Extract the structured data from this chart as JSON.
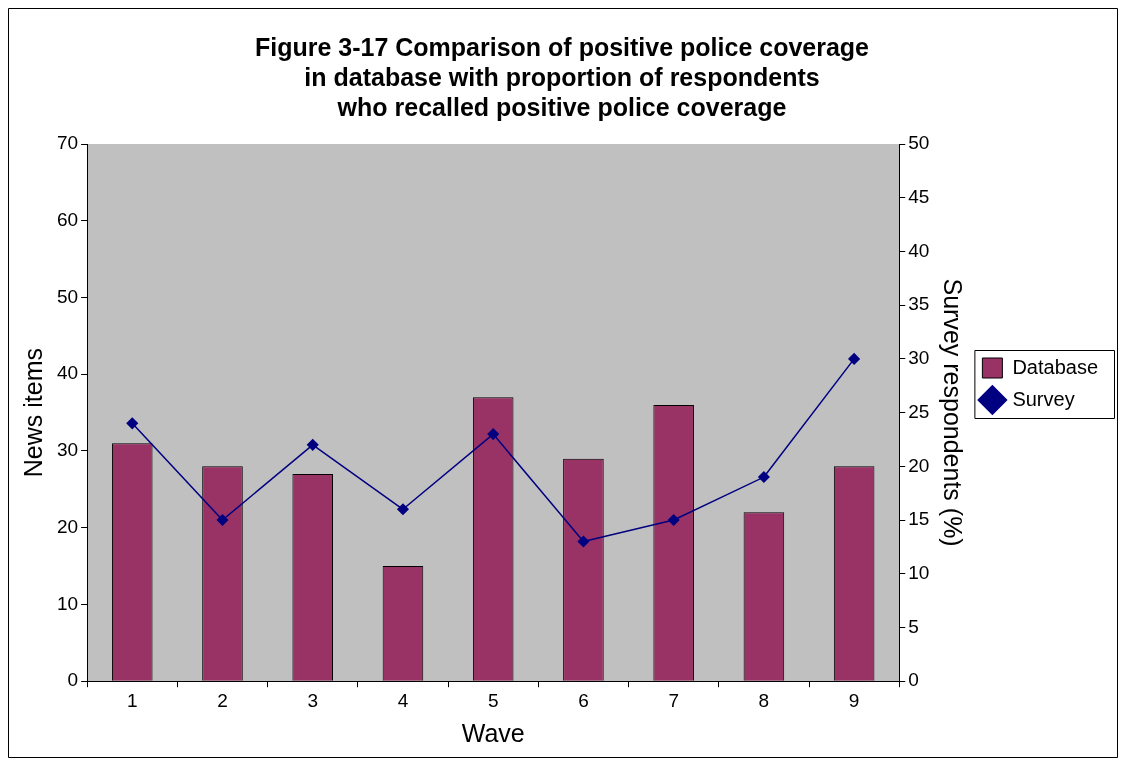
{
  "chart_data": {
    "type": "bar",
    "title": "Figure 3-17 Comparison of positive police coverage\nin database with proportion of respondents\nwho recalled positive police coverage",
    "xlabel": "Wave",
    "ylabel": "News items",
    "y2label": "Survey respondents (%)",
    "categories": [
      "1",
      "2",
      "3",
      "4",
      "5",
      "6",
      "7",
      "8",
      "9"
    ],
    "series": [
      {
        "name": "Database",
        "color": "#993366",
        "values": [
          31,
          28,
          27,
          15,
          37,
          29,
          36,
          22,
          28
        ]
      },
      {
        "name": "Survey",
        "type": "line",
        "axis": "y2",
        "color": "#000080",
        "marker": "diamond",
        "values": [
          24,
          15,
          22,
          16,
          23,
          13,
          15,
          19,
          30
        ]
      }
    ],
    "ylim": [
      0,
      70
    ],
    "yticks": [
      0,
      10,
      20,
      30,
      40,
      50,
      60,
      70
    ],
    "y2lim": [
      0,
      50
    ],
    "y2ticks": [
      0,
      5,
      10,
      15,
      20,
      25,
      30,
      35,
      40,
      45,
      50
    ],
    "grid": false,
    "legend": "right"
  }
}
